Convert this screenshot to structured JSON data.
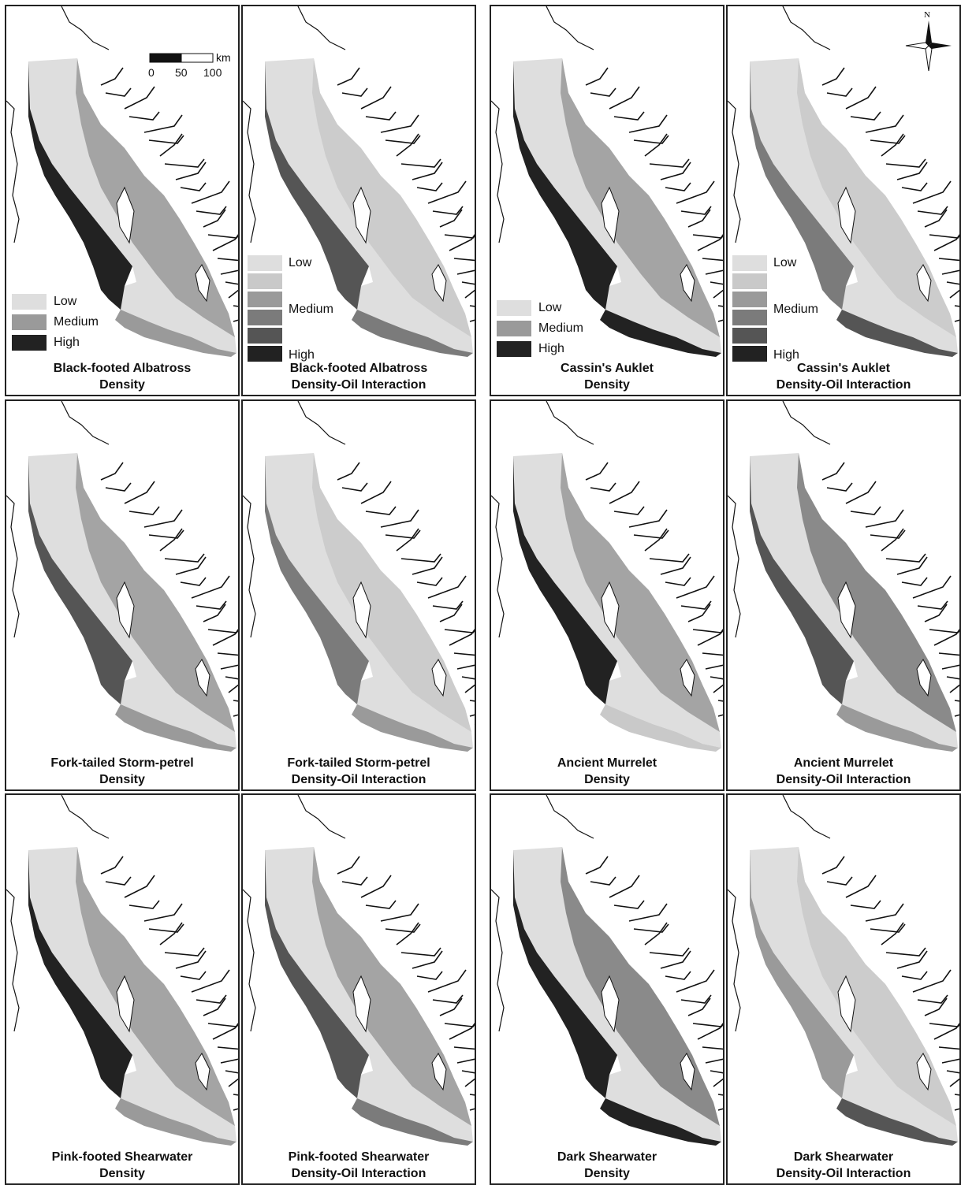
{
  "panels": [
    {
      "title_1": "Black-footed Albatross",
      "title_2": "Density",
      "legend": "three"
    },
    {
      "title_1": "Black-footed Albatross",
      "title_2": "Density-Oil Interaction",
      "legend": "six"
    },
    {
      "title_1": "Cassin's Auklet",
      "title_2": "Density",
      "legend": "three"
    },
    {
      "title_1": "Cassin's Auklet",
      "title_2": "Density-Oil Interaction",
      "legend": "six"
    },
    {
      "title_1": "Fork-tailed Storm-petrel",
      "title_2": "Density"
    },
    {
      "title_1": "Fork-tailed Storm-petrel",
      "title_2": "Density-Oil Interaction"
    },
    {
      "title_1": "Ancient Murrelet",
      "title_2": "Density"
    },
    {
      "title_1": "Ancient Murrelet",
      "title_2": "Density-Oil Interaction"
    },
    {
      "title_1": "Pink-footed Shearwater",
      "title_2": "Density"
    },
    {
      "title_1": "Pink-footed Shearwater",
      "title_2": "Density-Oil Interaction"
    },
    {
      "title_1": "Dark Shearwater",
      "title_2": "Density"
    },
    {
      "title_1": "Dark Shearwater",
      "title_2": "Density-Oil Interaction"
    }
  ],
  "legend_three": {
    "low": "Low",
    "medium": "Medium",
    "high": "High"
  },
  "legend_six": {
    "low": "Low",
    "medium": "Medium",
    "high": "High"
  },
  "scale_bar": {
    "unit": "km",
    "ticks": [
      "0",
      "50",
      "100"
    ]
  },
  "north_arrow": {
    "label": "N"
  },
  "colors": {
    "low": "#dedede",
    "low2": "#c9c9c9",
    "medium": "#9a9a9a",
    "med2": "#7b7b7b",
    "high2": "#555555",
    "high": "#222222",
    "land_line": "#111111"
  }
}
